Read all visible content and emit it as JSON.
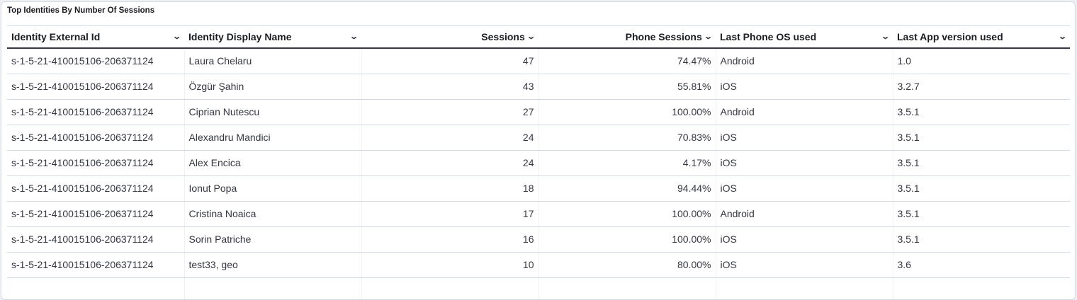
{
  "title": "Top Identities By Number Of Sessions",
  "columns": [
    {
      "label": "Identity External Id",
      "align": "left"
    },
    {
      "label": "Identity Display Name",
      "align": "left"
    },
    {
      "label": "Sessions",
      "align": "right"
    },
    {
      "label": "Phone Sessions",
      "align": "right"
    },
    {
      "label": "Last Phone OS used",
      "align": "left"
    },
    {
      "label": "Last App version used",
      "align": "left"
    }
  ],
  "rows": [
    [
      "s-1-5-21-410015106-206371124",
      "Laura Chelaru",
      "47",
      "74.47%",
      "Android",
      "1.0"
    ],
    [
      "s-1-5-21-410015106-206371124",
      "Özgür Şahin",
      "43",
      "55.81%",
      "iOS",
      "3.2.7"
    ],
    [
      "s-1-5-21-410015106-206371124",
      "Ciprian Nutescu",
      "27",
      "100.00%",
      "Android",
      "3.5.1"
    ],
    [
      "s-1-5-21-410015106-206371124",
      "Alexandru Mandici",
      "24",
      "70.83%",
      "iOS",
      "3.5.1"
    ],
    [
      "s-1-5-21-410015106-206371124",
      "Alex Encica",
      "24",
      "4.17%",
      "iOS",
      "3.5.1"
    ],
    [
      "s-1-5-21-410015106-206371124",
      "Ionut Popa",
      "18",
      "94.44%",
      "iOS",
      "3.5.1"
    ],
    [
      "s-1-5-21-410015106-206371124",
      "Cristina Noaica",
      "17",
      "100.00%",
      "Android",
      "3.5.1"
    ],
    [
      "s-1-5-21-410015106-206371124",
      "Sorin Patriche",
      "16",
      "100.00%",
      "iOS",
      "3.5.1"
    ],
    [
      "s-1-5-21-410015106-206371124",
      "test33, geo",
      "10",
      "80.00%",
      "iOS",
      "3.6"
    ]
  ]
}
